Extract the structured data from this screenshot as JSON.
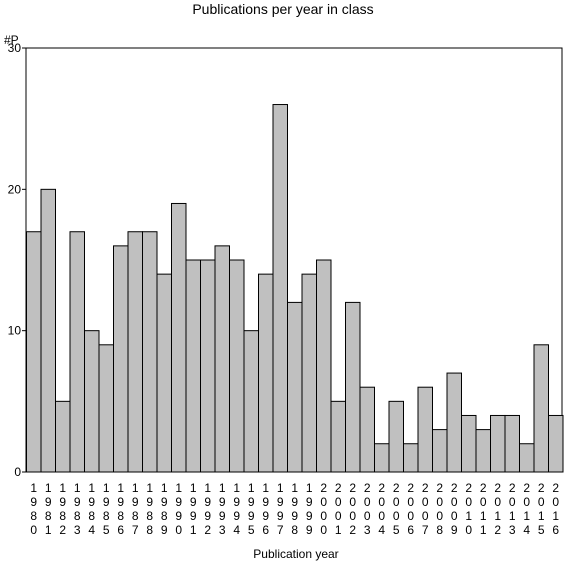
{
  "chart_data": {
    "type": "bar",
    "title": "Publications per year in class",
    "ylabel": "#P",
    "xlabel": "Publication year",
    "ylim": [
      0,
      30
    ],
    "yticks": [
      0,
      10,
      20,
      30
    ],
    "bar_color": "#c0c0c0",
    "categories": [
      "1980",
      "1981",
      "1982",
      "1983",
      "1984",
      "1985",
      "1986",
      "1987",
      "1988",
      "1989",
      "1990",
      "1991",
      "1992",
      "1993",
      "1994",
      "1995",
      "1996",
      "1997",
      "1998",
      "1999",
      "2000",
      "2001",
      "2002",
      "2003",
      "2004",
      "2005",
      "2006",
      "2007",
      "2008",
      "2009",
      "2010",
      "2011",
      "2012",
      "2013",
      "2014",
      "2015",
      "2016"
    ],
    "values": [
      17,
      20,
      5,
      17,
      10,
      9,
      16,
      17,
      17,
      14,
      19,
      15,
      15,
      16,
      15,
      10,
      14,
      26,
      12,
      14,
      15,
      5,
      12,
      6,
      2,
      5,
      2,
      6,
      3,
      7,
      4,
      3,
      4,
      4,
      2,
      9,
      4
    ]
  }
}
